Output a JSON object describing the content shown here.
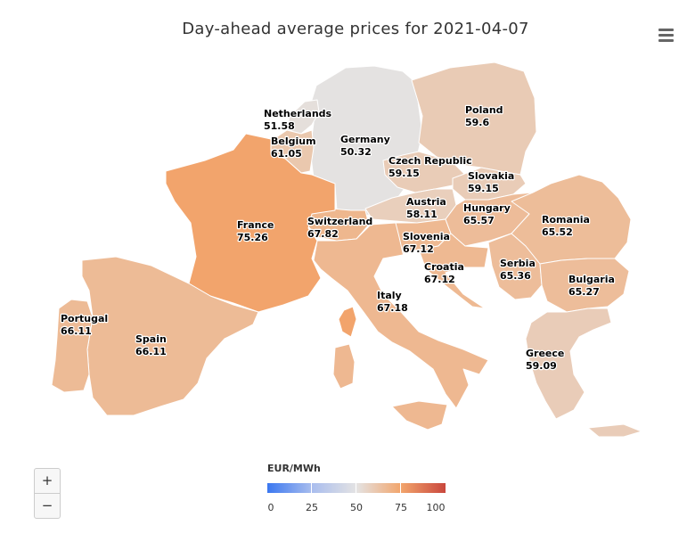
{
  "title": "Day-ahead average prices for 2021-04-07",
  "menu": {
    "icon": "hamburger-menu-icon"
  },
  "zoom": {
    "in_label": "+",
    "out_label": "−"
  },
  "legend": {
    "title": "EUR/MWh",
    "min": 0,
    "max": 100,
    "ticks": [
      "0",
      "25",
      "50",
      "75",
      "100"
    ],
    "colors": [
      "#3b78f0",
      "#a9bdee",
      "#e4e3e3",
      "#f2a56c",
      "#c9473d"
    ]
  },
  "countries": [
    {
      "name": "Netherlands",
      "value": "51.58"
    },
    {
      "name": "Belgium",
      "value": "61.05"
    },
    {
      "name": "Germany",
      "value": "50.32"
    },
    {
      "name": "Poland",
      "value": "59.6"
    },
    {
      "name": "Czech Republic",
      "value": "59.15"
    },
    {
      "name": "Slovakia",
      "value": "59.15"
    },
    {
      "name": "France",
      "value": "75.26"
    },
    {
      "name": "Switzerland",
      "value": "67.82"
    },
    {
      "name": "Austria",
      "value": "58.11"
    },
    {
      "name": "Hungary",
      "value": "65.57"
    },
    {
      "name": "Romania",
      "value": "65.52"
    },
    {
      "name": "Slovenia",
      "value": "67.12"
    },
    {
      "name": "Croatia",
      "value": "67.12"
    },
    {
      "name": "Serbia",
      "value": "65.36"
    },
    {
      "name": "Bulgaria",
      "value": "65.27"
    },
    {
      "name": "Italy",
      "value": "67.18"
    },
    {
      "name": "Portugal",
      "value": "66.11"
    },
    {
      "name": "Spain",
      "value": "66.11"
    },
    {
      "name": "Greece",
      "value": "59.09"
    }
  ]
}
